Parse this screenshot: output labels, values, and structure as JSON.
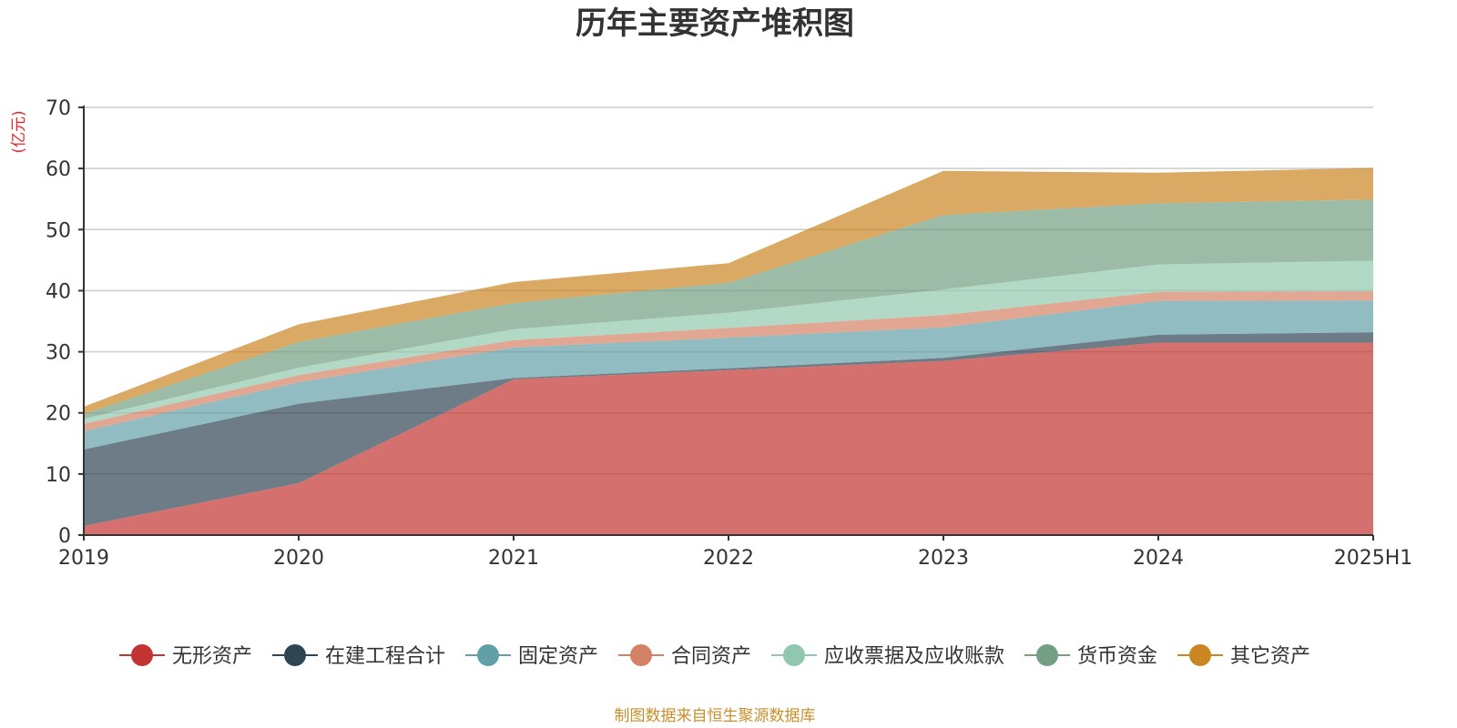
{
  "chart_data": {
    "type": "area",
    "stacked": true,
    "title": "历年主要资产堆积图",
    "ylabel": "(亿元)",
    "xlabel": "",
    "categories": [
      "2019",
      "2020",
      "2021",
      "2022",
      "2023",
      "2024",
      "2025H1"
    ],
    "ylim": [
      0,
      70
    ],
    "yticks": [
      0,
      10,
      20,
      30,
      40,
      50,
      60,
      70
    ],
    "grid": true,
    "legend_position": "bottom",
    "series": [
      {
        "name": "无形资产",
        "color": "#c23531",
        "values": [
          1.5,
          8.5,
          25.5,
          27.0,
          28.5,
          31.5,
          31.5
        ]
      },
      {
        "name": "在建工程合计",
        "color": "#2f4554",
        "values": [
          12.5,
          13.0,
          0.2,
          0.3,
          0.5,
          1.3,
          1.7
        ]
      },
      {
        "name": "固定资产",
        "color": "#61a0a8",
        "values": [
          3.0,
          3.5,
          5.0,
          5.0,
          5.0,
          5.5,
          5.2
        ]
      },
      {
        "name": "合同资产",
        "color": "#d48265",
        "values": [
          1.2,
          1.2,
          1.2,
          1.6,
          2.0,
          1.5,
          1.5
        ]
      },
      {
        "name": "应收票据及应收账款",
        "color": "#91c7ae",
        "values": [
          0.8,
          1.2,
          1.8,
          2.5,
          4.2,
          4.5,
          5.0
        ]
      },
      {
        "name": "货币资金",
        "color": "#749f83",
        "values": [
          0.8,
          4.2,
          4.3,
          4.9,
          12.2,
          10.0,
          10.0
        ]
      },
      {
        "name": "其它资产",
        "color": "#ca8622",
        "values": [
          1.2,
          2.9,
          3.4,
          3.2,
          7.2,
          5.0,
          5.2
        ]
      }
    ]
  },
  "source_note": "制图数据来自恒生聚源数据库"
}
